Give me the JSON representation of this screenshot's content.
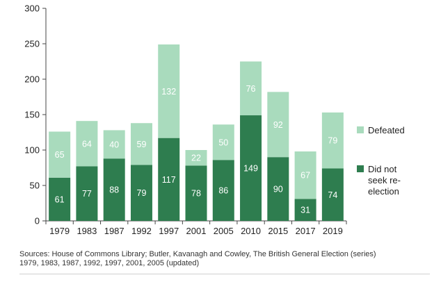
{
  "chart_data": {
    "type": "bar",
    "stacked": true,
    "categories": [
      "1979",
      "1983",
      "1987",
      "1992",
      "1997",
      "2001",
      "2005",
      "2010",
      "2015",
      "2017",
      "2019"
    ],
    "series": [
      {
        "name": "Did not seek re-election",
        "label_lines": [
          "Did not",
          "seek re-",
          "election"
        ],
        "color": "#2e7d4f",
        "values": [
          61,
          77,
          88,
          79,
          117,
          78,
          86,
          149,
          90,
          31,
          74
        ]
      },
      {
        "name": "Defeated",
        "label_lines": [
          "Defeated"
        ],
        "color": "#a9dbbd",
        "values": [
          65,
          64,
          40,
          59,
          132,
          22,
          50,
          76,
          92,
          67,
          79
        ]
      }
    ],
    "yticks": [
      0,
      50,
      100,
      150,
      200,
      250,
      300
    ],
    "ylim": [
      0,
      300
    ],
    "grid": false,
    "legend_position": "right"
  },
  "source_lines": [
    "Sources: House of Commons Library; Butler, Kavanagh and Cowley, The British General Election (series)",
    "1979, 1983, 1987, 1992, 1997, 2001, 2005 (updated)"
  ]
}
